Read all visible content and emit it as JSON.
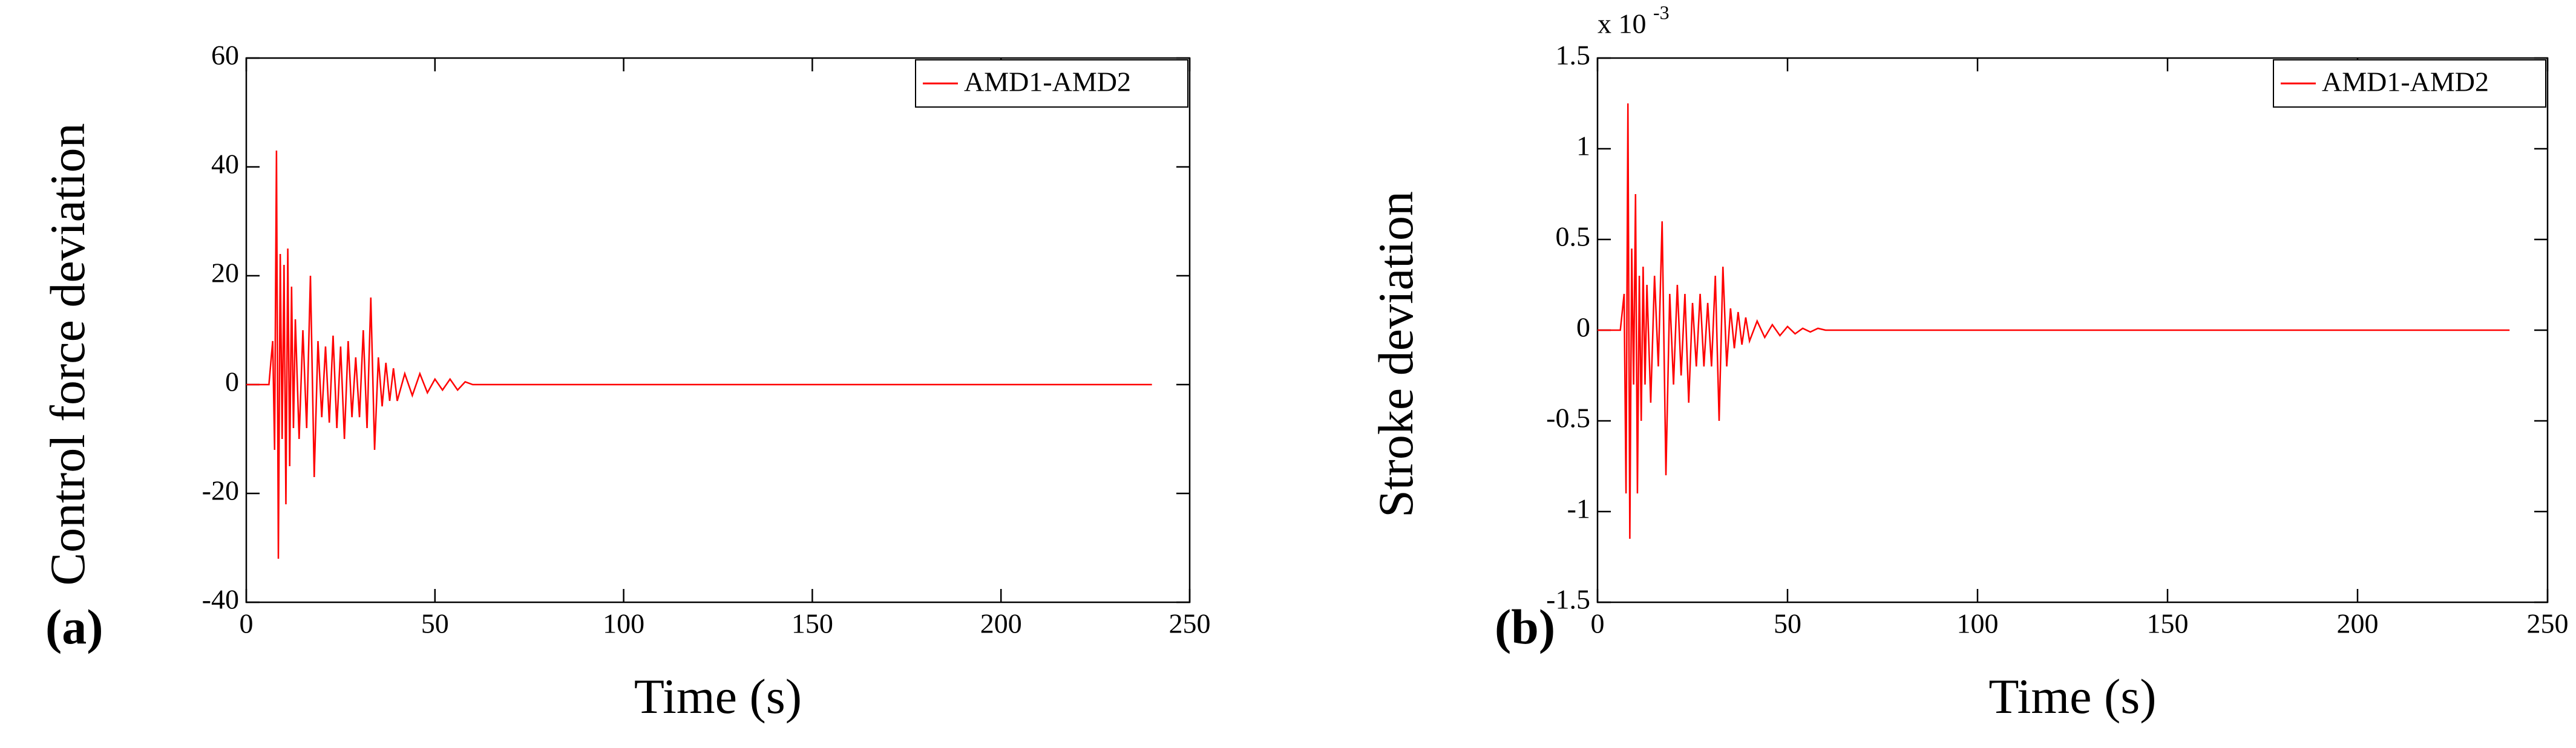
{
  "chart_data": [
    {
      "type": "line",
      "panel_label": "(a)",
      "x_label": "Time (s)",
      "y_label": "Control force deviation",
      "xlim": [
        0,
        250
      ],
      "xticks": [
        0,
        50,
        100,
        150,
        200,
        250
      ],
      "ylim": [
        -40,
        60
      ],
      "yticks": [
        -40,
        -20,
        0,
        20,
        40,
        60
      ],
      "legend": "upper right",
      "x": [
        0,
        6,
        7,
        7.5,
        8,
        8.5,
        9,
        9.5,
        10,
        10.5,
        11,
        11.5,
        12,
        12.5,
        13,
        14,
        15,
        16,
        17,
        18,
        19,
        20,
        21,
        22,
        23,
        24,
        25,
        26,
        27,
        28,
        29,
        30,
        31,
        32,
        33,
        34,
        35,
        36,
        37,
        38,
        39,
        40,
        42,
        44,
        46,
        48,
        50,
        52,
        54,
        56,
        58,
        60,
        240
      ],
      "series": [
        {
          "name": "AMD1-AMD2",
          "color": "#ff0000",
          "values": [
            0,
            0,
            8,
            -12,
            43,
            -32,
            24,
            -10,
            22,
            -22,
            25,
            -15,
            18,
            -8,
            12,
            -10,
            10,
            -8,
            20,
            -17,
            8,
            -6,
            7,
            -7,
            9,
            -8,
            7,
            -10,
            8,
            -6,
            5,
            -6,
            10,
            -8,
            16,
            -12,
            5,
            -4,
            4,
            -3,
            3,
            -3,
            2,
            -2,
            2,
            -1.5,
            1,
            -1,
            1,
            -1,
            0.5,
            0,
            0
          ]
        }
      ]
    },
    {
      "type": "line",
      "panel_label": "(b)",
      "x_label": "Time (s)",
      "y_label": "Stroke deviation",
      "axis_multiplier": "x 10",
      "axis_multiplier_exponent": "-3",
      "xlim": [
        0,
        250
      ],
      "xticks": [
        0,
        50,
        100,
        150,
        200,
        250
      ],
      "ylim": [
        -0.0015,
        0.0015
      ],
      "yticks": [
        {
          "value": -0.0015,
          "label": "-1.5"
        },
        {
          "value": -0.001,
          "label": "-1"
        },
        {
          "value": -0.0005,
          "label": "-0.5"
        },
        0,
        {
          "value": 0.0005,
          "label": "0.5"
        },
        {
          "value": 0.001,
          "label": "1"
        },
        {
          "value": 0.0015,
          "label": "1.5"
        }
      ],
      "legend": "upper right",
      "x": [
        0,
        6,
        7,
        7.5,
        8,
        8.5,
        9,
        9.5,
        10,
        10.5,
        11,
        11.5,
        12,
        12.5,
        13,
        14,
        15,
        16,
        17,
        18,
        19,
        20,
        21,
        22,
        23,
        24,
        25,
        26,
        27,
        28,
        29,
        30,
        31,
        32,
        33,
        34,
        35,
        36,
        37,
        38,
        39,
        40,
        42,
        44,
        46,
        48,
        50,
        52,
        54,
        56,
        58,
        60,
        240
      ],
      "series": [
        {
          "name": "AMD1-AMD2",
          "color": "#ff0000",
          "values": [
            0,
            0,
            0.0002,
            -0.0009,
            0.00125,
            -0.00115,
            0.00045,
            -0.0003,
            0.00075,
            -0.0009,
            0.0003,
            -0.0005,
            0.00035,
            -0.0003,
            0.00025,
            -0.0004,
            0.0003,
            -0.0002,
            0.0006,
            -0.0008,
            0.0002,
            -0.0003,
            0.00025,
            -0.00025,
            0.0002,
            -0.0004,
            0.00015,
            -0.0002,
            0.0002,
            -0.0002,
            0.00015,
            -0.0002,
            0.0003,
            -0.0005,
            0.00035,
            -0.0002,
            0.00012,
            -0.0001,
            0.0001,
            -8e-05,
            7e-05,
            -6e-05,
            5e-05,
            -4e-05,
            3e-05,
            -3e-05,
            2e-05,
            -2e-05,
            1e-05,
            -1e-05,
            1e-05,
            0,
            0
          ]
        }
      ]
    }
  ]
}
